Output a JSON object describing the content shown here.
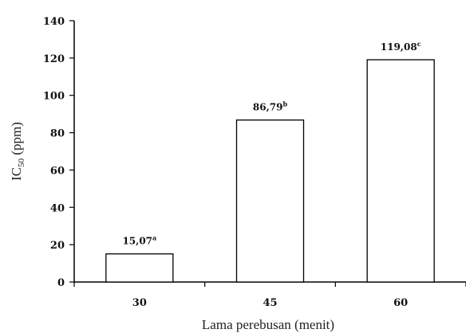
{
  "chart_data": {
    "type": "bar",
    "categories": [
      "30",
      "45",
      "60"
    ],
    "values": [
      15.07,
      86.79,
      119.08
    ],
    "data_labels": [
      {
        "value": "15,07",
        "superscript": "a"
      },
      {
        "value": "86,79",
        "superscript": "b"
      },
      {
        "value": "119,08",
        "superscript": "c"
      }
    ],
    "xlabel": "Lama perebusan (menit)",
    "ylabel": {
      "main": "IC",
      "subscript": "50",
      "suffix": " (ppm)"
    },
    "ylim": [
      0,
      140
    ],
    "yticks": [
      0,
      20,
      40,
      60,
      80,
      100,
      120,
      140
    ],
    "grid": false,
    "bar_fill": "#ffffff",
    "bar_stroke": "#000000"
  }
}
